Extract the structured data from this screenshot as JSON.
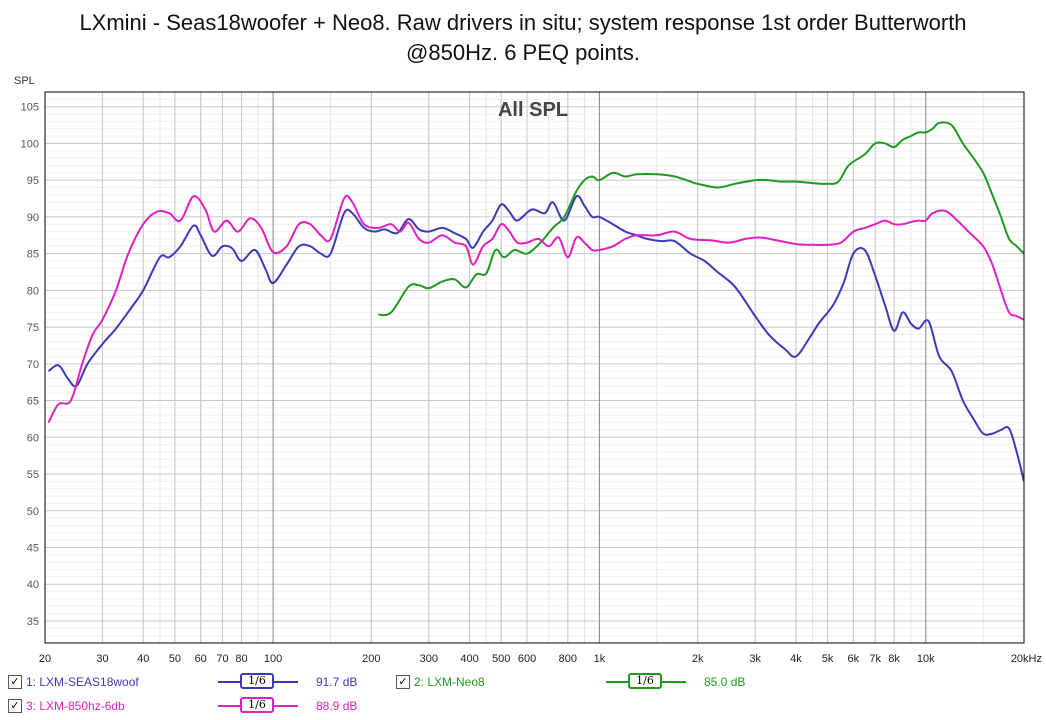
{
  "title_line1": "LXmini - Seas18woofer + Neo8. Raw drivers in situ; system response 1st order Butterworth",
  "title_line2": "@850Hz. 6 PEQ points.",
  "legend": {
    "items": [
      {
        "checked": "✓",
        "label": "1: LXM-SEAS18woof",
        "smoothing": "1/6",
        "value": "91.7 dB",
        "color": "#3b3bb8"
      },
      {
        "checked": "✓",
        "label": "2: LXM-Neo8",
        "smoothing": "1/6",
        "value": "85.0 dB",
        "color": "#1f9a1f"
      },
      {
        "checked": "✓",
        "label": "3: LXM-850hz-6db",
        "smoothing": "1/6",
        "value": "88.9 dB",
        "color": "#e020c0"
      }
    ]
  },
  "chart_data": {
    "type": "line",
    "title": "All SPL",
    "ylabel": "SPL",
    "xscale": "log",
    "xlim": [
      20,
      20000
    ],
    "ylim": [
      32,
      107
    ],
    "grid": true,
    "x_tick_values": [
      20,
      30,
      40,
      50,
      60,
      70,
      80,
      100,
      200,
      300,
      400,
      500,
      600,
      800,
      1000,
      2000,
      3000,
      4000,
      5000,
      6000,
      7000,
      8000,
      10000,
      20000
    ],
    "x_tick_labels": [
      "20",
      "30",
      "40",
      "50",
      "60",
      "70",
      "80",
      "100",
      "200",
      "300",
      "400",
      "500",
      "600",
      "800",
      "1k",
      "2k",
      "3k",
      "4k",
      "5k",
      "6k",
      "7k",
      "8k",
      "10k",
      "20kHz"
    ],
    "y_tick_values": [
      35,
      40,
      45,
      50,
      55,
      60,
      65,
      70,
      75,
      80,
      85,
      90,
      95,
      100,
      105
    ],
    "y_tick_labels": [
      "35",
      "40",
      "45",
      "50",
      "55",
      "60",
      "65",
      "70",
      "75",
      "80",
      "85",
      "90",
      "95",
      "100",
      "105"
    ],
    "series": [
      {
        "name": "1: LXM-SEAS18woof",
        "color": "#3b3bb8",
        "points": [
          [
            20.5,
            69
          ],
          [
            22,
            69.8
          ],
          [
            23.5,
            68
          ],
          [
            25,
            67
          ],
          [
            27,
            70
          ],
          [
            30,
            72.7
          ],
          [
            33,
            74.8
          ],
          [
            37,
            77.8
          ],
          [
            40,
            80
          ],
          [
            45,
            84.5
          ],
          [
            48,
            84.5
          ],
          [
            52,
            86
          ],
          [
            57,
            88.8
          ],
          [
            60,
            87.5
          ],
          [
            65,
            84.7
          ],
          [
            70,
            86
          ],
          [
            75,
            85.7
          ],
          [
            80,
            84
          ],
          [
            88,
            85.5
          ],
          [
            95,
            82.8
          ],
          [
            100,
            81
          ],
          [
            110,
            83.5
          ],
          [
            120,
            86
          ],
          [
            130,
            86
          ],
          [
            140,
            85
          ],
          [
            150,
            85
          ],
          [
            165,
            90.5
          ],
          [
            175,
            90.5
          ],
          [
            190,
            88.5
          ],
          [
            205,
            88
          ],
          [
            220,
            88.3
          ],
          [
            240,
            87.8
          ],
          [
            260,
            89.7
          ],
          [
            280,
            88.3
          ],
          [
            300,
            88
          ],
          [
            330,
            88.5
          ],
          [
            360,
            87.8
          ],
          [
            390,
            87
          ],
          [
            410,
            85.8
          ],
          [
            440,
            88
          ],
          [
            470,
            89.5
          ],
          [
            500,
            91.7
          ],
          [
            530,
            90.7
          ],
          [
            560,
            89.5
          ],
          [
            620,
            91
          ],
          [
            680,
            90.5
          ],
          [
            720,
            92
          ],
          [
            780,
            89.5
          ],
          [
            850,
            92.8
          ],
          [
            900,
            91.5
          ],
          [
            950,
            90
          ],
          [
            1000,
            90
          ],
          [
            1100,
            89
          ],
          [
            1200,
            88
          ],
          [
            1300,
            87.5
          ],
          [
            1400,
            87
          ],
          [
            1550,
            86.7
          ],
          [
            1700,
            86.7
          ],
          [
            1900,
            85
          ],
          [
            2100,
            84
          ],
          [
            2300,
            82.5
          ],
          [
            2600,
            80.5
          ],
          [
            3000,
            76.5
          ],
          [
            3300,
            74
          ],
          [
            3700,
            72
          ],
          [
            4000,
            71
          ],
          [
            4400,
            73.5
          ],
          [
            4700,
            75.5
          ],
          [
            5200,
            78
          ],
          [
            5600,
            81
          ],
          [
            6000,
            85
          ],
          [
            6500,
            85.5
          ],
          [
            7000,
            82
          ],
          [
            7500,
            78
          ],
          [
            8000,
            74.5
          ],
          [
            8500,
            77
          ],
          [
            9000,
            75.5
          ],
          [
            9500,
            74.8
          ],
          [
            10200,
            75.8
          ],
          [
            11000,
            71
          ],
          [
            12000,
            69
          ],
          [
            13000,
            65
          ],
          [
            14000,
            62.5
          ],
          [
            15000,
            60.5
          ],
          [
            16000,
            60.5
          ],
          [
            17000,
            61
          ],
          [
            18000,
            61.2
          ],
          [
            19000,
            58
          ],
          [
            20000,
            54
          ]
        ]
      },
      {
        "name": "2: LXM-Neo8",
        "color": "#1f9a1f",
        "points": [
          [
            210,
            76.7
          ],
          [
            230,
            77
          ],
          [
            260,
            80.5
          ],
          [
            280,
            80.7
          ],
          [
            300,
            80.3
          ],
          [
            330,
            81.2
          ],
          [
            360,
            81.5
          ],
          [
            390,
            80.4
          ],
          [
            420,
            82.2
          ],
          [
            450,
            82.3
          ],
          [
            480,
            85.5
          ],
          [
            510,
            84.5
          ],
          [
            550,
            85.5
          ],
          [
            600,
            85
          ],
          [
            660,
            86.5
          ],
          [
            720,
            88.5
          ],
          [
            780,
            90
          ],
          [
            850,
            93.5
          ],
          [
            900,
            95
          ],
          [
            950,
            95.5
          ],
          [
            1000,
            95
          ],
          [
            1100,
            96
          ],
          [
            1200,
            95.5
          ],
          [
            1300,
            95.8
          ],
          [
            1500,
            95.8
          ],
          [
            1700,
            95.5
          ],
          [
            1900,
            94.8
          ],
          [
            2000,
            94.5
          ],
          [
            2300,
            94
          ],
          [
            2600,
            94.5
          ],
          [
            3000,
            95
          ],
          [
            3300,
            95
          ],
          [
            3600,
            94.8
          ],
          [
            4000,
            94.8
          ],
          [
            4500,
            94.6
          ],
          [
            5000,
            94.5
          ],
          [
            5400,
            94.8
          ],
          [
            5800,
            97
          ],
          [
            6500,
            98.5
          ],
          [
            7000,
            100
          ],
          [
            7500,
            100
          ],
          [
            8000,
            99.5
          ],
          [
            8500,
            100.5
          ],
          [
            9000,
            101
          ],
          [
            9500,
            101.5
          ],
          [
            10000,
            101.5
          ],
          [
            10500,
            102
          ],
          [
            11000,
            102.8
          ],
          [
            12000,
            102.5
          ],
          [
            13000,
            100
          ],
          [
            14000,
            98
          ],
          [
            15000,
            96
          ],
          [
            16000,
            93
          ],
          [
            17000,
            90
          ],
          [
            18000,
            87
          ],
          [
            19000,
            86
          ],
          [
            20000,
            85
          ]
        ]
      },
      {
        "name": "3: LXM-850hz-6db",
        "color": "#e020c0",
        "points": [
          [
            20.5,
            62
          ],
          [
            22,
            64.5
          ],
          [
            24,
            65
          ],
          [
            26,
            70
          ],
          [
            28,
            74
          ],
          [
            30,
            76
          ],
          [
            33,
            80
          ],
          [
            36,
            85
          ],
          [
            40,
            89
          ],
          [
            44,
            90.7
          ],
          [
            48,
            90.5
          ],
          [
            52,
            89.5
          ],
          [
            57,
            92.8
          ],
          [
            62,
            91
          ],
          [
            66,
            88
          ],
          [
            72,
            89.5
          ],
          [
            78,
            88
          ],
          [
            85,
            89.8
          ],
          [
            92,
            88.5
          ],
          [
            100,
            85.2
          ],
          [
            110,
            86
          ],
          [
            120,
            89
          ],
          [
            130,
            89
          ],
          [
            140,
            87.5
          ],
          [
            150,
            87
          ],
          [
            165,
            92.5
          ],
          [
            175,
            92
          ],
          [
            190,
            89
          ],
          [
            210,
            88.5
          ],
          [
            230,
            89
          ],
          [
            245,
            88
          ],
          [
            260,
            89.2
          ],
          [
            280,
            87
          ],
          [
            300,
            86.5
          ],
          [
            330,
            87.5
          ],
          [
            360,
            86.5
          ],
          [
            390,
            86
          ],
          [
            410,
            83.5
          ],
          [
            440,
            86
          ],
          [
            470,
            87
          ],
          [
            500,
            89
          ],
          [
            530,
            88
          ],
          [
            560,
            86.5
          ],
          [
            600,
            86.5
          ],
          [
            650,
            87
          ],
          [
            700,
            86
          ],
          [
            750,
            87.2
          ],
          [
            800,
            84.5
          ],
          [
            850,
            87.2
          ],
          [
            900,
            86.5
          ],
          [
            950,
            85.5
          ],
          [
            1000,
            85.5
          ],
          [
            1100,
            86
          ],
          [
            1200,
            87
          ],
          [
            1300,
            87.5
          ],
          [
            1500,
            87.5
          ],
          [
            1700,
            88
          ],
          [
            1900,
            87
          ],
          [
            2200,
            86.8
          ],
          [
            2500,
            86.5
          ],
          [
            2800,
            87
          ],
          [
            3100,
            87.2
          ],
          [
            3500,
            86.8
          ],
          [
            4000,
            86.3
          ],
          [
            4500,
            86.2
          ],
          [
            5000,
            86.2
          ],
          [
            5500,
            86.5
          ],
          [
            6000,
            88
          ],
          [
            6500,
            88.5
          ],
          [
            7000,
            89
          ],
          [
            7500,
            89.5
          ],
          [
            8000,
            89
          ],
          [
            8500,
            89
          ],
          [
            9000,
            89.3
          ],
          [
            9500,
            89.5
          ],
          [
            10000,
            89.5
          ],
          [
            10500,
            90.5
          ],
          [
            11500,
            90.8
          ],
          [
            12500,
            89.5
          ],
          [
            13500,
            88
          ],
          [
            15000,
            86
          ],
          [
            16000,
            83.5
          ],
          [
            17000,
            80
          ],
          [
            18000,
            77
          ],
          [
            19000,
            76.5
          ],
          [
            20000,
            76
          ]
        ]
      }
    ]
  }
}
